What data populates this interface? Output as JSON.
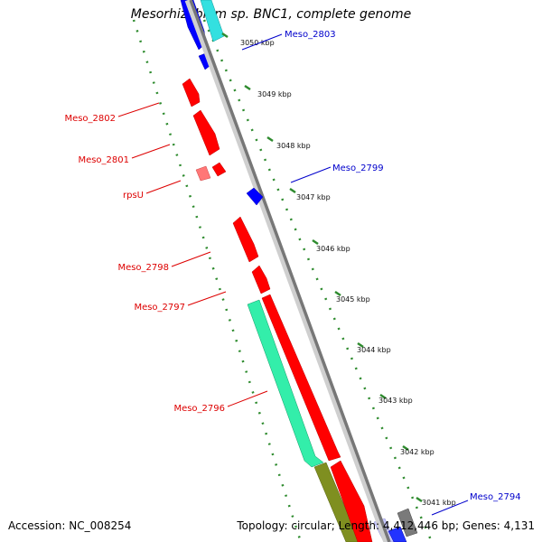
{
  "title": "Mesorhizobium sp. BNC1, complete genome",
  "footer": {
    "accession": "Accession: NC_008254",
    "summary": "Topology: circular; Length: 4,412,446 bp; Genes: 4,131"
  },
  "colors": {
    "backbone": "#888888",
    "tick": "#2e8b2e",
    "reverse_label": "#dd0000",
    "forward_label": "#0000cc",
    "red_gene": "#ff0000",
    "blue_gene": "#0000ff",
    "cyan_gene": "#33e0e0",
    "teal_gene": "#33eeaa",
    "olive_gene": "#7f8f20",
    "pink_gene": "#ff7777",
    "gray_gene": "#7a7a7a"
  },
  "ticks": [
    {
      "label": "3050 kbp"
    },
    {
      "label": "3049 kbp"
    },
    {
      "label": "3048 kbp"
    },
    {
      "label": "3047 kbp"
    },
    {
      "label": "3046 kbp"
    },
    {
      "label": "3045 kbp"
    },
    {
      "label": "3044 kbp"
    },
    {
      "label": "3043 kbp"
    },
    {
      "label": "3042 kbp"
    },
    {
      "label": "3041 kbp"
    }
  ],
  "gene_labels": [
    {
      "text": "Meso_2803",
      "strand": "forward"
    },
    {
      "text": "Meso_2802",
      "strand": "reverse"
    },
    {
      "text": "Meso_2801",
      "strand": "reverse"
    },
    {
      "text": "Meso_2799",
      "strand": "forward"
    },
    {
      "text": "rpsU",
      "strand": "reverse"
    },
    {
      "text": "Meso_2798",
      "strand": "reverse"
    },
    {
      "text": "Meso_2797",
      "strand": "reverse"
    },
    {
      "text": "Meso_2796",
      "strand": "reverse"
    },
    {
      "text": "Meso_2794",
      "strand": "forward"
    }
  ]
}
